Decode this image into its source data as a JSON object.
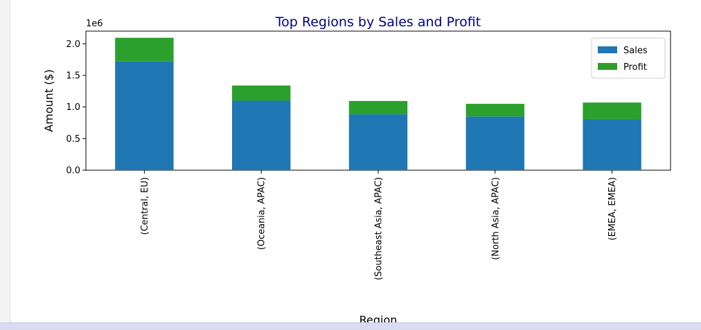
{
  "chart_data": {
    "type": "bar",
    "stacked": true,
    "title": "Top Regions by Sales and Profit",
    "title_color": "#00008b",
    "xlabel": "Region",
    "ylabel": "Amount ($)",
    "y_offset_label": "1e6",
    "y_scale": 1000000,
    "ylim": [
      0,
      2200000
    ],
    "yticks": [
      {
        "value": 0,
        "label": "0.0"
      },
      {
        "value": 500000,
        "label": "0.5"
      },
      {
        "value": 1000000,
        "label": "1.0"
      },
      {
        "value": 1500000,
        "label": "1.5"
      },
      {
        "value": 2000000,
        "label": "2.0"
      }
    ],
    "categories": [
      "(Central, EU)",
      "(Oceania, APAC)",
      "(Southeast Asia, APAC)",
      "(North Asia, APAC)",
      "(EMEA, EMEA)"
    ],
    "series": [
      {
        "name": "Sales",
        "color": "#1f77b4",
        "values": [
          1720000,
          1100000,
          885000,
          850000,
          805000
        ]
      },
      {
        "name": "Profit",
        "color": "#2ca02c",
        "values": [
          375000,
          240000,
          210000,
          200000,
          265000
        ]
      }
    ],
    "grid": false,
    "legend_position": "top-right"
  }
}
